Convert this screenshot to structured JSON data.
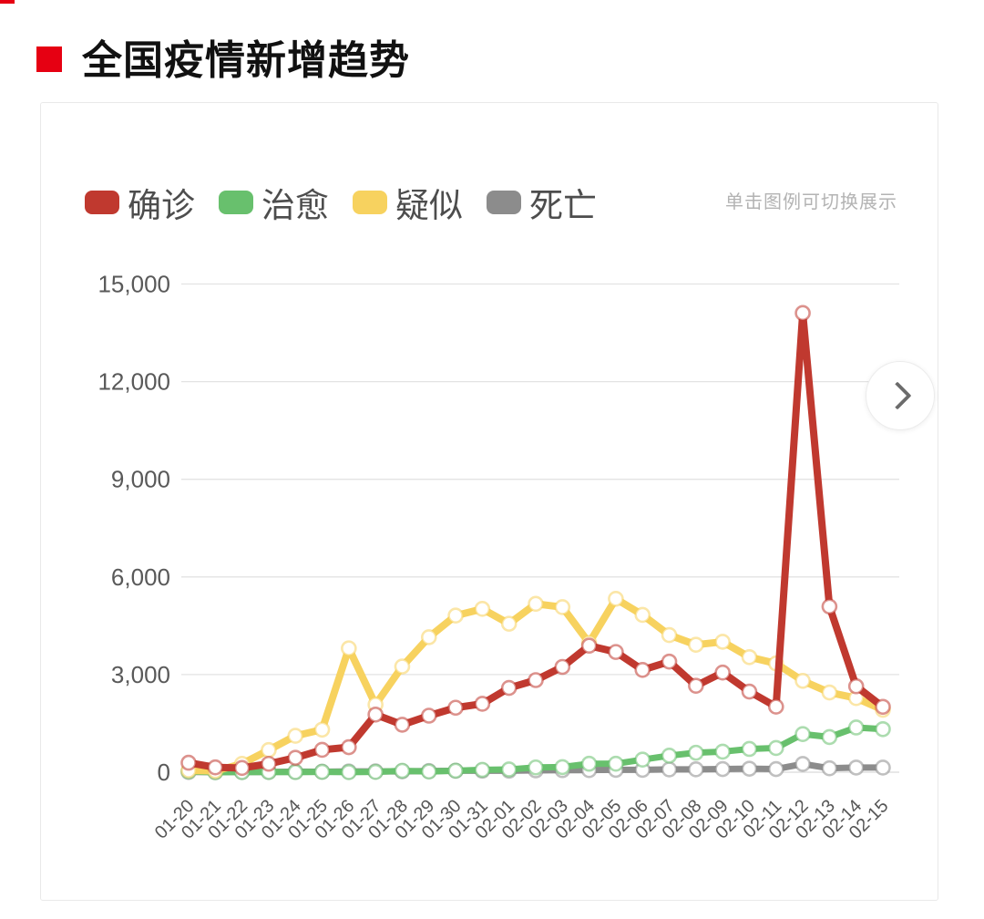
{
  "page": {
    "title": "全国疫情新增趋势"
  },
  "legend_hint": "单击图例可切换展示",
  "controls": {
    "next_label": "next"
  },
  "colors": {
    "title_bullet": "#e60012",
    "confirmed": "#c0392f",
    "cured": "#68c06d",
    "suspected": "#f7d25f",
    "deaths": "#8c8c8c",
    "grid": "#e3e3e3",
    "axis_text": "#595959"
  },
  "chart_data": {
    "type": "line",
    "title": "全国疫情新增趋势",
    "xlabel": "",
    "ylabel": "",
    "ylim": [
      0,
      15000
    ],
    "yticks": [
      0,
      3000,
      6000,
      9000,
      12000,
      15000
    ],
    "ytick_labels": [
      "0",
      "3,000",
      "6,000",
      "9,000",
      "12,000",
      "15,000"
    ],
    "grid": true,
    "legend_position": "top-left",
    "categories": [
      "01-20",
      "01-21",
      "01-22",
      "01-23",
      "01-24",
      "01-25",
      "01-26",
      "01-27",
      "01-28",
      "01-29",
      "01-30",
      "01-31",
      "02-01",
      "02-02",
      "02-03",
      "02-04",
      "02-05",
      "02-06",
      "02-07",
      "02-08",
      "02-09",
      "02-10",
      "02-11",
      "02-12",
      "02-13",
      "02-14",
      "02-15"
    ],
    "series": [
      {
        "id": "confirmed",
        "name": "确诊",
        "color": "#c0392f",
        "line_width": 8,
        "values": [
          291,
          149,
          131,
          259,
          444,
          688,
          769,
          1771,
          1459,
          1737,
          1982,
          2102,
          2590,
          2829,
          3235,
          3887,
          3694,
          3143,
          3399,
          2656,
          3062,
          2478,
          2015,
          14108,
          5090,
          2641,
          2009
        ]
      },
      {
        "id": "cured",
        "name": "治愈",
        "color": "#68c06d",
        "line_width": 7,
        "values": [
          25,
          0,
          3,
          6,
          4,
          11,
          2,
          9,
          43,
          21,
          47,
          72,
          85,
          147,
          157,
          260,
          261,
          387,
          510,
          599,
          632,
          715,
          744,
          1171,
          1081,
          1373,
          1323
        ]
      },
      {
        "id": "suspected",
        "name": "疑似",
        "color": "#f7d25f",
        "line_width": 8,
        "values": [
          54,
          37,
          257,
          680,
          1118,
          1309,
          3806,
          2077,
          3248,
          4148,
          4812,
          5019,
          4562,
          5173,
          5072,
          3971,
          5328,
          4833,
          4214,
          3916,
          4008,
          3536,
          3342,
          2807,
          2450,
          2277,
          1918
        ]
      },
      {
        "id": "deaths",
        "name": "死亡",
        "color": "#8c8c8c",
        "line_width": 7,
        "values": [
          6,
          3,
          8,
          8,
          16,
          15,
          24,
          26,
          26,
          38,
          43,
          46,
          45,
          57,
          64,
          65,
          73,
          73,
          86,
          89,
          97,
          108,
          97,
          254,
          121,
          143,
          142
        ]
      }
    ]
  }
}
